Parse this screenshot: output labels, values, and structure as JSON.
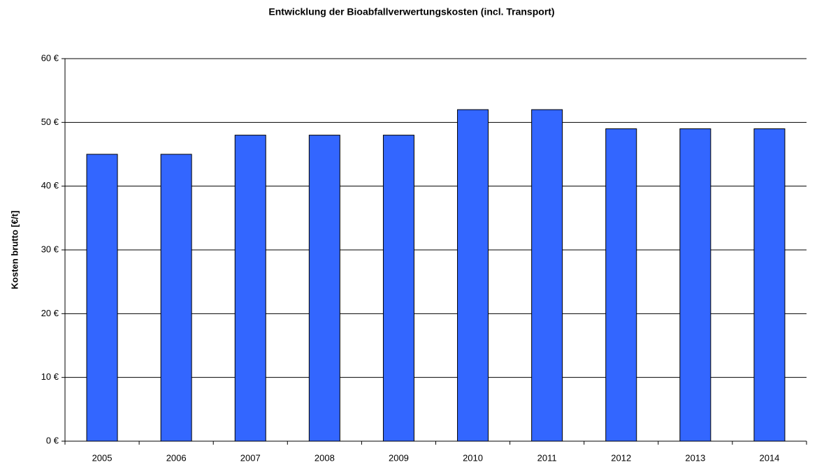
{
  "chart_data": {
    "type": "bar",
    "title": "Entwicklung der Bioabfallverwertungskosten (incl. Transport)",
    "y_label": "Kosten brutto [€/t]",
    "categories": [
      "2005",
      "2006",
      "2007",
      "2008",
      "2009",
      "2010",
      "2011",
      "2012",
      "2013",
      "2014"
    ],
    "values": [
      45,
      45,
      48,
      48,
      48,
      52,
      52,
      49,
      49,
      49
    ],
    "color": "#3366ff",
    "ylim": [
      0,
      60
    ],
    "yticks": [
      {
        "value": 0,
        "label": "0 €"
      },
      {
        "value": 10,
        "label": "10 €"
      },
      {
        "value": 20,
        "label": "20 €"
      },
      {
        "value": 30,
        "label": "30 €"
      },
      {
        "value": 40,
        "label": "40 €"
      },
      {
        "value": 50,
        "label": "50 €"
      },
      {
        "value": 60,
        "label": "60 €"
      }
    ],
    "grid": true
  }
}
